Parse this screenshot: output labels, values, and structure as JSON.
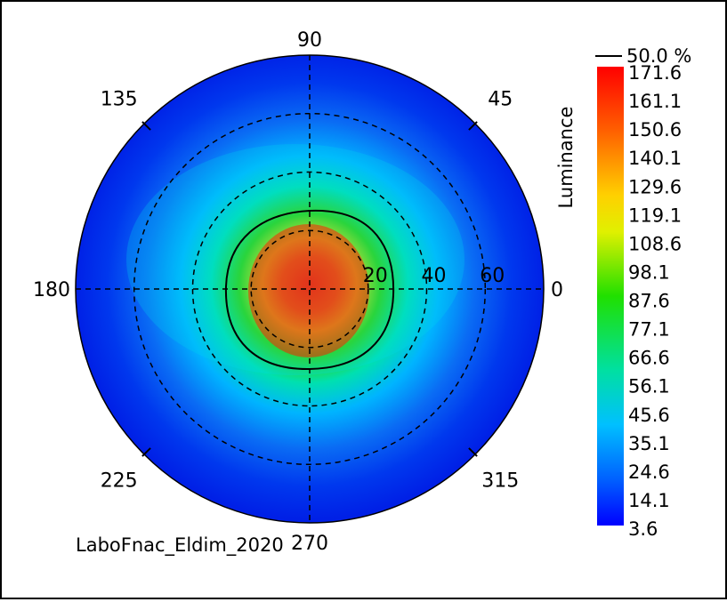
{
  "chart_data": {
    "type": "heatmap",
    "projection": "polar",
    "quantity_label": "Luminance",
    "footer_text": "LaboFnac_Eldim_2020",
    "angle_ticks": [
      "0",
      "45",
      "90",
      "135",
      "180",
      "225",
      "270",
      "315"
    ],
    "angle_tick_values": [
      0,
      45,
      90,
      135,
      180,
      225,
      270,
      315
    ],
    "radius_ticks": [
      "20",
      "40",
      "60"
    ],
    "radius_tick_values": [
      20,
      40,
      60
    ],
    "radius_max": 80,
    "colorbar": {
      "contour_legend": "50.0 %",
      "min": 3.6,
      "max": 171.6,
      "labels": [
        "171.6",
        "161.1",
        "150.6",
        "140.1",
        "129.6",
        "119.1",
        "108.6",
        "98.1",
        "87.6",
        "77.1",
        "66.6",
        "56.1",
        "45.6",
        "35.1",
        "24.6",
        "14.1",
        "3.6"
      ]
    },
    "contour_level_percent": 50.0,
    "peak_value": 171.6,
    "grid": true,
    "colors": {
      "low": "#0000ff",
      "high": "#ff0000",
      "contour": "#000000"
    }
  }
}
